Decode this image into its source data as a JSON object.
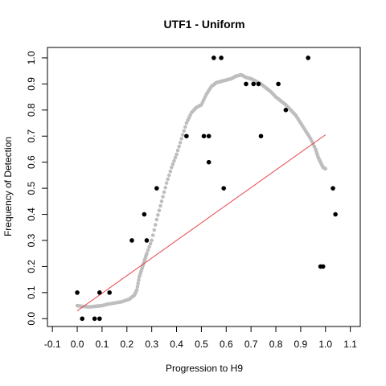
{
  "chart_data": {
    "type": "scatter",
    "title": "UTF1 - Uniform",
    "xlabel": "Progression to H9",
    "ylabel": "Frequency of Detection",
    "xlim": [
      -0.12,
      1.14
    ],
    "ylim": [
      -0.03,
      1.04
    ],
    "x_ticks": [
      -0.1,
      0.0,
      0.1,
      0.2,
      0.3,
      0.4,
      0.5,
      0.6,
      0.7,
      0.8,
      0.9,
      1.0,
      1.1
    ],
    "x_tick_labels": [
      "-0.1",
      "0.0",
      "0.1",
      "0.2",
      "0.3",
      "0.4",
      "0.5",
      "0.6",
      "0.7",
      "0.8",
      "0.9",
      "1.0",
      "1.1"
    ],
    "y_ticks": [
      0.0,
      0.1,
      0.2,
      0.3,
      0.4,
      0.5,
      0.6,
      0.7,
      0.8,
      0.9,
      1.0
    ],
    "y_tick_labels": [
      "0.0",
      "0.1",
      "0.2",
      "0.3",
      "0.4",
      "0.5",
      "0.6",
      "0.7",
      "0.8",
      "0.9",
      "1.0"
    ],
    "grid": false,
    "colors": {
      "observed": "#000000",
      "smooth": "#bebebe",
      "fit": "#e8474a"
    },
    "observed_points": [
      [
        0.0,
        0.1
      ],
      [
        0.02,
        0.0
      ],
      [
        0.07,
        0.0
      ],
      [
        0.09,
        0.0
      ],
      [
        0.09,
        0.1
      ],
      [
        0.13,
        0.1
      ],
      [
        0.22,
        0.3
      ],
      [
        0.27,
        0.4
      ],
      [
        0.28,
        0.3
      ],
      [
        0.32,
        0.5
      ],
      [
        0.44,
        0.7
      ],
      [
        0.51,
        0.7
      ],
      [
        0.53,
        0.7
      ],
      [
        0.53,
        0.6
      ],
      [
        0.55,
        1.0
      ],
      [
        0.58,
        1.0
      ],
      [
        0.59,
        0.5
      ],
      [
        0.68,
        0.9
      ],
      [
        0.71,
        0.9
      ],
      [
        0.73,
        0.9
      ],
      [
        0.74,
        0.7
      ],
      [
        0.81,
        0.9
      ],
      [
        0.84,
        0.8
      ],
      [
        0.93,
        1.0
      ],
      [
        0.98,
        0.2
      ],
      [
        0.99,
        0.2
      ],
      [
        1.03,
        0.5
      ],
      [
        1.04,
        0.4
      ]
    ],
    "smooth_curve": [
      [
        0.0,
        0.05
      ],
      [
        0.02,
        0.047
      ],
      [
        0.05,
        0.045
      ],
      [
        0.08,
        0.048
      ],
      [
        0.1,
        0.05
      ],
      [
        0.12,
        0.055
      ],
      [
        0.15,
        0.06
      ],
      [
        0.18,
        0.065
      ],
      [
        0.21,
        0.075
      ],
      [
        0.23,
        0.09
      ],
      [
        0.24,
        0.11
      ],
      [
        0.25,
        0.16
      ],
      [
        0.26,
        0.19
      ],
      [
        0.27,
        0.22
      ],
      [
        0.28,
        0.25
      ],
      [
        0.3,
        0.3
      ],
      [
        0.32,
        0.38
      ],
      [
        0.34,
        0.45
      ],
      [
        0.36,
        0.52
      ],
      [
        0.38,
        0.58
      ],
      [
        0.4,
        0.63
      ],
      [
        0.42,
        0.69
      ],
      [
        0.44,
        0.75
      ],
      [
        0.46,
        0.79
      ],
      [
        0.48,
        0.81
      ],
      [
        0.5,
        0.82
      ],
      [
        0.52,
        0.86
      ],
      [
        0.54,
        0.89
      ],
      [
        0.56,
        0.905
      ],
      [
        0.58,
        0.91
      ],
      [
        0.6,
        0.915
      ],
      [
        0.62,
        0.92
      ],
      [
        0.64,
        0.93
      ],
      [
        0.66,
        0.935
      ],
      [
        0.68,
        0.925
      ],
      [
        0.7,
        0.92
      ],
      [
        0.72,
        0.91
      ],
      [
        0.74,
        0.9
      ],
      [
        0.76,
        0.885
      ],
      [
        0.78,
        0.87
      ],
      [
        0.8,
        0.85
      ],
      [
        0.82,
        0.835
      ],
      [
        0.84,
        0.82
      ],
      [
        0.86,
        0.8
      ],
      [
        0.88,
        0.78
      ],
      [
        0.9,
        0.75
      ],
      [
        0.92,
        0.72
      ],
      [
        0.94,
        0.69
      ],
      [
        0.96,
        0.65
      ],
      [
        0.97,
        0.62
      ],
      [
        0.98,
        0.6
      ],
      [
        0.99,
        0.58
      ],
      [
        1.0,
        0.575
      ]
    ],
    "fit_line": {
      "x": [
        0.0,
        1.0
      ],
      "y": [
        0.03,
        0.705
      ]
    }
  }
}
